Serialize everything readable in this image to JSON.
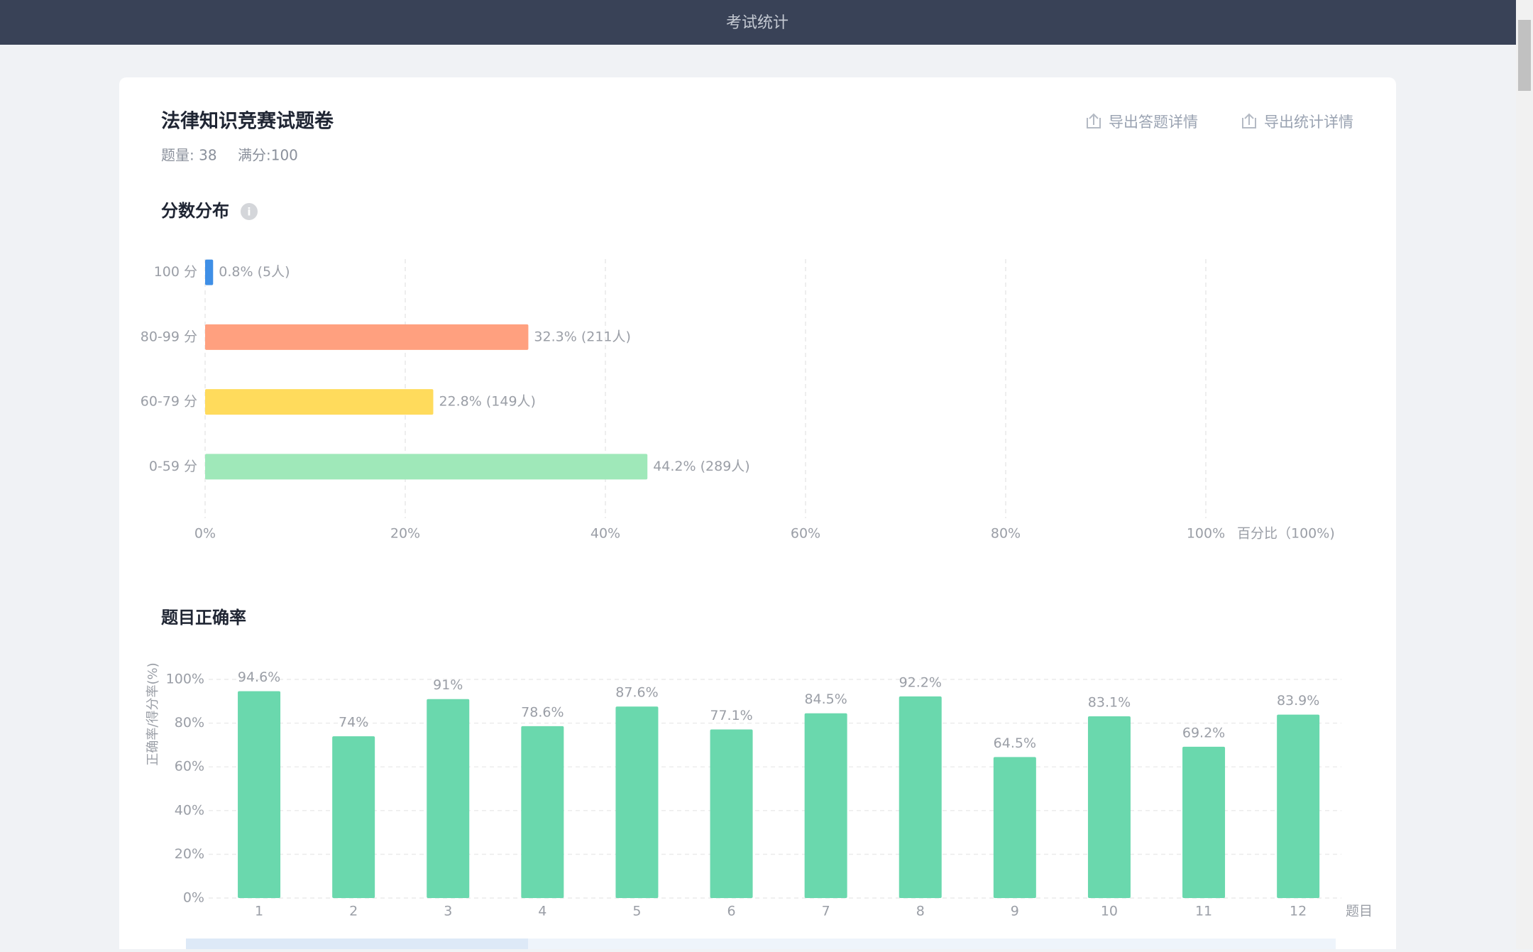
{
  "header": {
    "title": "考试统计"
  },
  "exam": {
    "title": "法律知识竞赛试题卷",
    "count": "题量: 38",
    "full": "满分:100"
  },
  "actions": [
    "导出答题详情",
    "导出统计详情"
  ],
  "chart_data": [
    {
      "type": "bar",
      "horizontal": true,
      "title": "分数分布",
      "categories": [
        "100 分",
        "80-99 分",
        "60-79 分",
        "0-59 分"
      ],
      "values": [
        0.8,
        32.3,
        22.8,
        44.2
      ],
      "value_labels": [
        "0.8% (5人)",
        "32.3% (211人)",
        "22.8% (149人)",
        "44.2% (289人)"
      ],
      "colors": [
        "#3f8fe6",
        "#ffa07f",
        "#ffdb5c",
        "#9fe8b9"
      ],
      "xlim": [
        0,
        100
      ],
      "xticks": [
        {
          "value": 0,
          "label": "0%"
        },
        {
          "value": 20,
          "label": "20%"
        },
        {
          "value": 40,
          "label": "40%"
        },
        {
          "value": 60,
          "label": "60%"
        },
        {
          "value": 80,
          "label": "80%"
        },
        {
          "value": 100,
          "label": "100%"
        }
      ],
      "x_label": "百分比（100%)",
      "grid": true
    },
    {
      "type": "bar",
      "title": "题目正确率",
      "categories": [
        "1",
        "2",
        "3",
        "4",
        "5",
        "6",
        "7",
        "8",
        "9",
        "10",
        "11",
        "12"
      ],
      "values": [
        94.6,
        74,
        91,
        78.6,
        87.6,
        77.1,
        84.5,
        92.2,
        64.5,
        83.1,
        69.2,
        83.9
      ],
      "value_labels": [
        "94.6%",
        "74%",
        "91%",
        "78.6%",
        "87.6%",
        "77.1%",
        "84.5%",
        "92.2%",
        "64.5%",
        "83.1%",
        "69.2%",
        "83.9%"
      ],
      "color": "#6ad8ad",
      "ylim": [
        0,
        100
      ],
      "yticks": [
        {
          "value": 0,
          "label": "0%"
        },
        {
          "value": 20,
          "label": "20%"
        },
        {
          "value": 40,
          "label": "40%"
        },
        {
          "value": 60,
          "label": "60%"
        },
        {
          "value": 80,
          "label": "80%"
        },
        {
          "value": 100,
          "label": "100%"
        }
      ],
      "y_label": "正确率/得分率(%)",
      "x_label": "题目",
      "grid": true
    }
  ]
}
